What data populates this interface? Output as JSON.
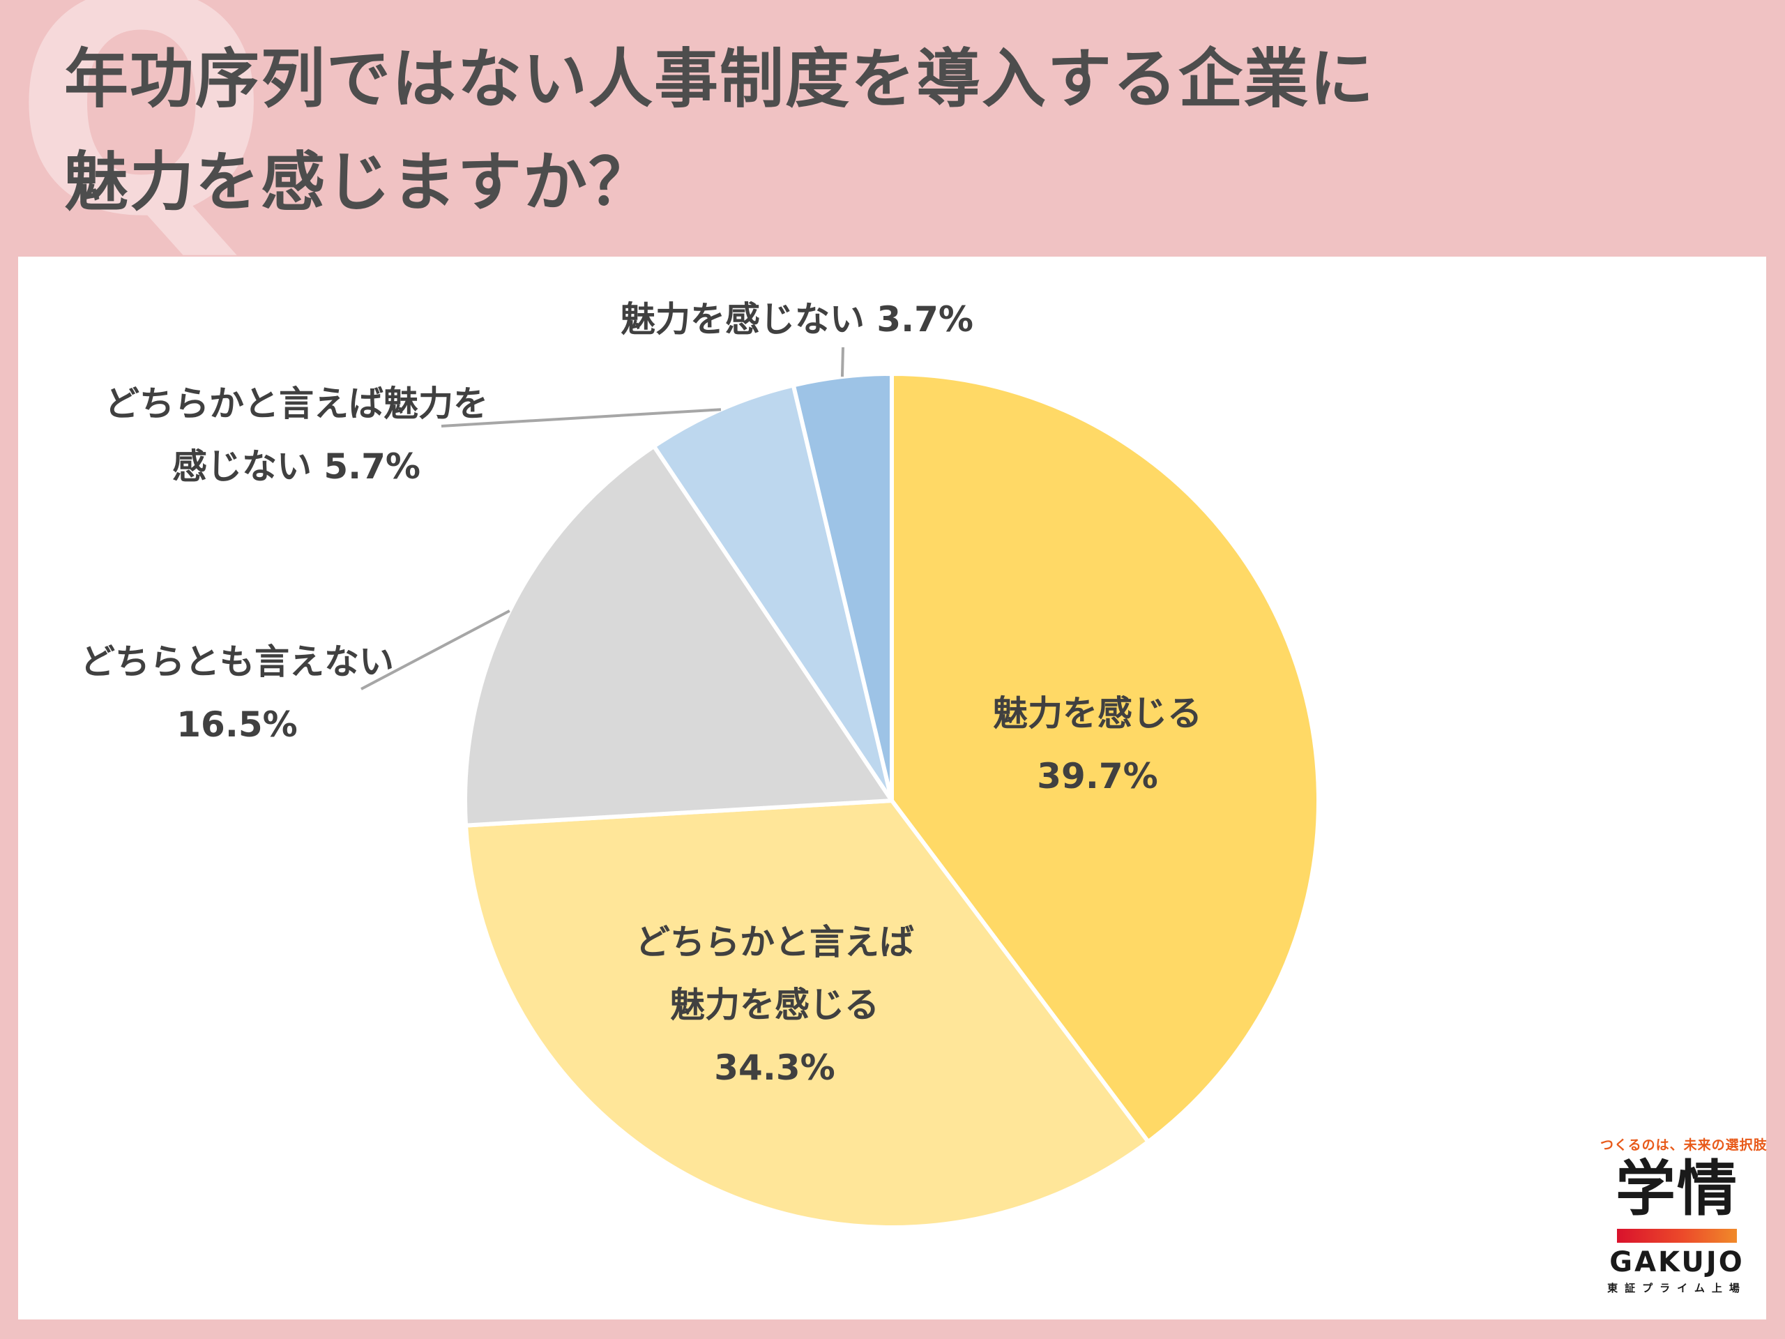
{
  "title_lines": [
    "年功序列ではない人事制度を導入する企業に",
    "魅力を感じますか？"
  ],
  "decoration": {
    "q_letter": "Q"
  },
  "logo": {
    "tagline": "つくるのは、未来の選択肢",
    "mark": "学情",
    "name": "GAKUJO",
    "sub": "東証プライム上場"
  },
  "colors": {
    "background": "#f0c2c3",
    "title": "#4d4d4d",
    "label": "#404040",
    "leader": "#a6a6a6"
  },
  "chart_data": {
    "type": "pie",
    "start": "12 o'clock",
    "direction": "clockwise",
    "legend": "none",
    "slices": [
      {
        "label_lines": [
          "魅力を感じる"
        ],
        "value": 39.7,
        "value_text": "39.7%",
        "color": "#ffd966",
        "label_position": "inside"
      },
      {
        "label_lines": [
          "どちらかと言えば",
          "魅力を感じる"
        ],
        "value": 34.3,
        "value_text": "34.3%",
        "color": "#ffe699",
        "label_position": "inside"
      },
      {
        "label_lines": [
          "どちらとも言えない"
        ],
        "value": 16.5,
        "value_text": "16.5%",
        "color": "#d9d9d9",
        "label_position": "outside-left"
      },
      {
        "label_lines": [
          "どちらかと言えば魅力を",
          "感じない"
        ],
        "value": 5.7,
        "value_text": "5.7%",
        "color": "#bdd7ee",
        "label_position": "outside-upper-left"
      },
      {
        "label_lines": [
          "魅力を感じない"
        ],
        "value": 3.7,
        "value_text": "3.7%",
        "color": "#9dc3e6",
        "label_position": "outside-top"
      }
    ]
  }
}
